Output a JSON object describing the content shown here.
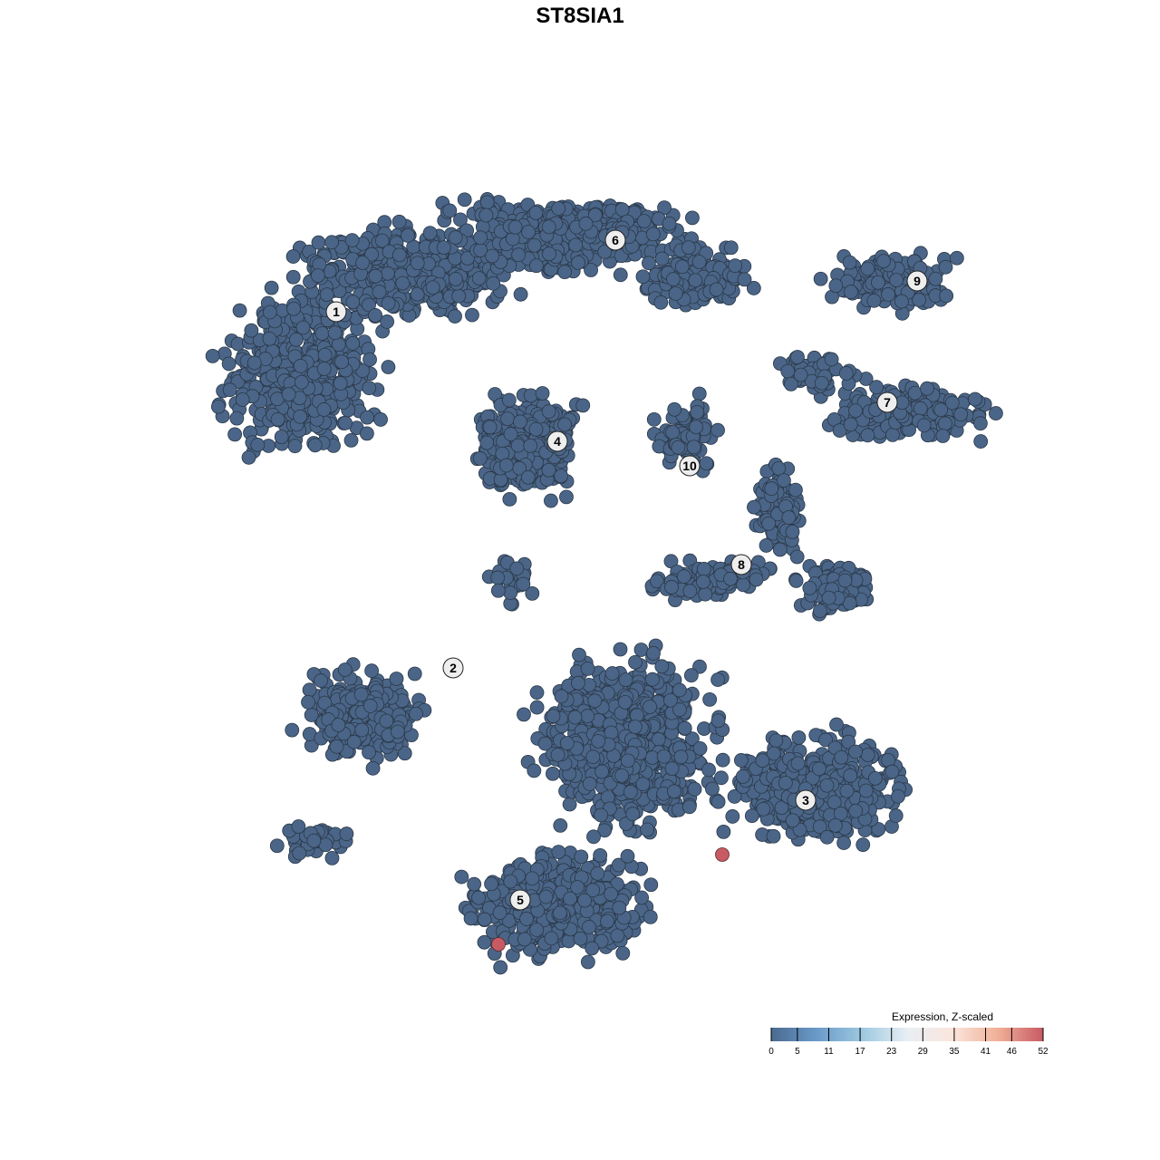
{
  "chart_data": {
    "type": "scatter",
    "title": "ST8SIA1",
    "xlabel": "",
    "ylabel": "",
    "grid": false,
    "clusters": [
      "1",
      "2",
      "3",
      "4",
      "5",
      "6",
      "7",
      "8",
      "9",
      "10"
    ],
    "point_color_low": "#4a6587",
    "point_color_high": "#c85a64",
    "highlighted_point_values": [
      52,
      52
    ],
    "typical_point_value": 0,
    "colorbar": {
      "title": "Expression, Z-scaled",
      "ticks": [
        "0",
        "5",
        "11",
        "17",
        "23",
        "29",
        "35",
        "41",
        "46",
        "52"
      ],
      "range": [
        0,
        52
      ],
      "colors": [
        "#4a6a90",
        "#6a9ac8",
        "#9cc8e0",
        "#e8eef4",
        "#fbe6dc",
        "#f0b098",
        "#c85a64"
      ],
      "placement": "bottom-right"
    }
  }
}
